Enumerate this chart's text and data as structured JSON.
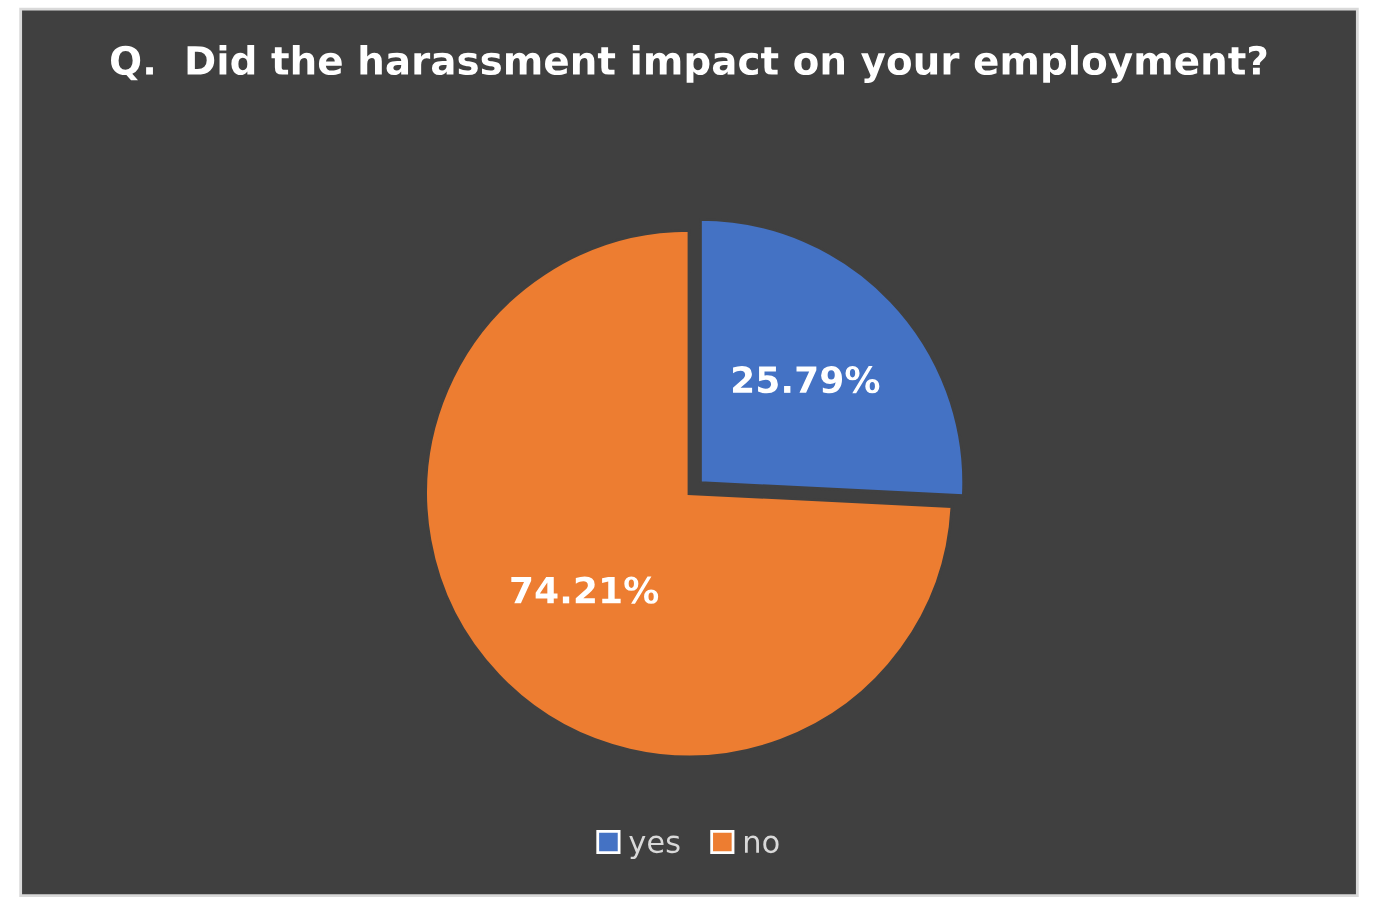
{
  "chart_data": {
    "type": "pie",
    "title": "Q.  Did the harassment impact on your employment?",
    "categories": [
      "yes",
      "no"
    ],
    "values": [
      25.79,
      74.21
    ],
    "colors": [
      "#4472c4",
      "#ed7d31"
    ],
    "value_labels": [
      "25.79%",
      "74.21%"
    ],
    "legend": "bottom"
  }
}
